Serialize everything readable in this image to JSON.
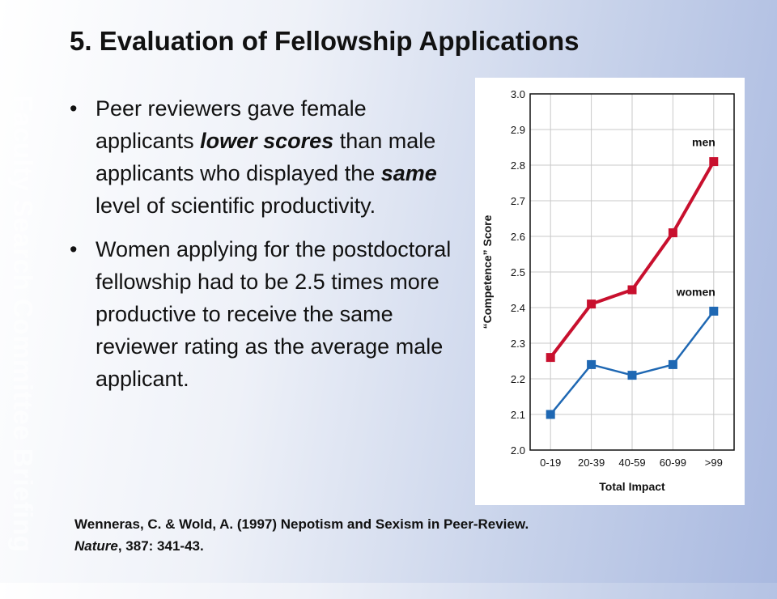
{
  "watermark": "Faculty Search Committee Briefing",
  "title": "5. Evaluation of Fellowship Applications",
  "bullets": [
    {
      "marker": "•",
      "parts": [
        {
          "t": "Peer reviewers gave female applicants "
        },
        {
          "t": "lower scores",
          "b": true,
          "i": true
        },
        {
          "t": " than male applicants who displayed the "
        },
        {
          "t": "same",
          "b": true,
          "i": true
        },
        {
          "t": " level of scientific productivity."
        }
      ]
    },
    {
      "marker": "•",
      "parts": [
        {
          "t": "Women applying for the postdoctoral fellowship had to be 2.5 times more productive to receive the same reviewer rating as the average male applicant."
        }
      ]
    }
  ],
  "citation": {
    "line1": "Wenneras, C. & Wold, A. (1997) Nepotism and Sexism in Peer-Review.",
    "journal": "Nature",
    "rest": ", 387: 341-43."
  },
  "chart_data": {
    "type": "line",
    "title": "",
    "xlabel": "Total Impact",
    "ylabel": "“Competence” Score",
    "categories": [
      "0-19",
      "20-39",
      "40-59",
      "60-99",
      ">99"
    ],
    "ylim": [
      2.0,
      3.0
    ],
    "yticks": [
      "2.0",
      "2.1",
      "2.2",
      "2.3",
      "2.4",
      "2.5",
      "2.6",
      "2.7",
      "2.8",
      "2.9",
      "3.0"
    ],
    "grid": true,
    "legend": "inline labels near line ends",
    "series": [
      {
        "name": "men",
        "color": "#c8102e",
        "values": [
          2.26,
          2.41,
          2.45,
          2.61,
          2.81
        ]
      },
      {
        "name": "women",
        "color": "#1f68b3",
        "values": [
          2.1,
          2.24,
          2.21,
          2.24,
          2.39
        ]
      }
    ]
  }
}
